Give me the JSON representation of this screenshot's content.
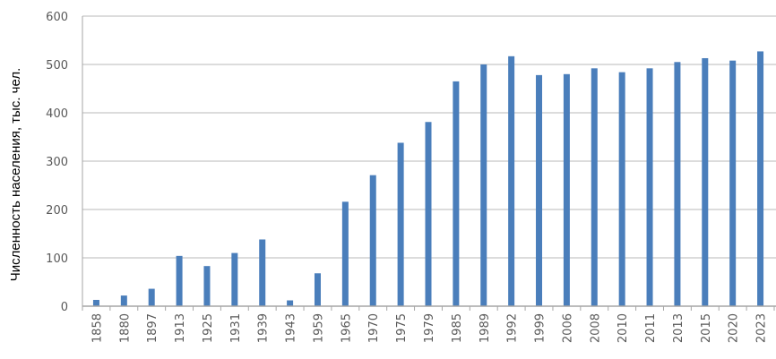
{
  "chart_data": {
    "type": "bar",
    "title": "",
    "xlabel": "",
    "ylabel": "Численность населения, тыс. чел.",
    "categories": [
      "1858",
      "1880",
      "1897",
      "1913",
      "1925",
      "1931",
      "1939",
      "1943",
      "1959",
      "1965",
      "1970",
      "1975",
      "1979",
      "1985",
      "1989",
      "1992",
      "1999",
      "2006",
      "2008",
      "2010",
      "2011",
      "2013",
      "2015",
      "2020",
      "2023"
    ],
    "series": [
      {
        "values": [
          13,
          22,
          36,
          104,
          83,
          110,
          138,
          12,
          68,
          216,
          271,
          338,
          381,
          465,
          500,
          517,
          478,
          480,
          492,
          484,
          492,
          505,
          513,
          508,
          527
        ]
      }
    ],
    "ylim": [
      0,
      600
    ],
    "yticks": [
      0,
      100,
      200,
      300,
      400,
      500,
      600
    ],
    "grid": true,
    "legend": "none",
    "colors": {
      "bar": "#4a7ebb",
      "grid": "#d0d0d0",
      "axis": "#a6a6a6"
    }
  }
}
